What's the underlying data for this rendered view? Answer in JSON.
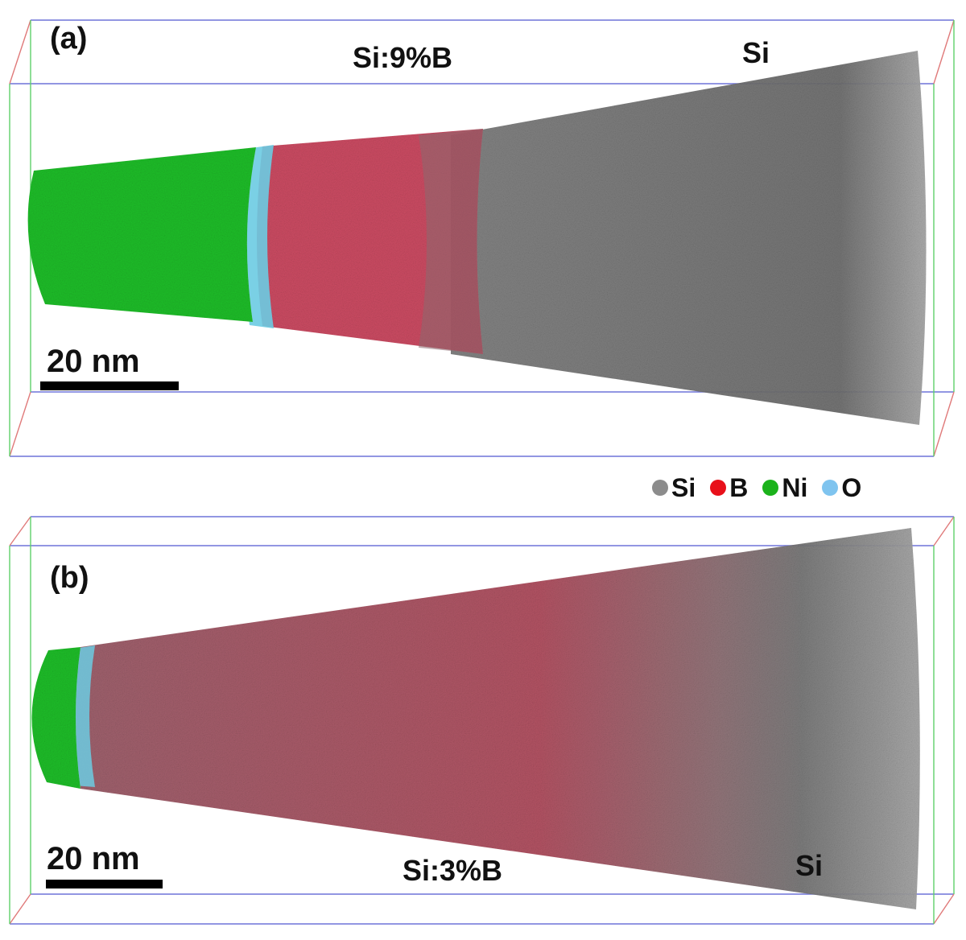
{
  "panel_a": {
    "label": "(a)",
    "region_doped": "Si:9%B",
    "region_undoped": "Si",
    "scale_bar": "20 nm"
  },
  "panel_b": {
    "label": "(b)",
    "region_doped": "Si:3%B",
    "region_undoped": "Si",
    "scale_bar": "20 nm"
  },
  "legend": [
    {
      "label": "Si",
      "color": "#8c8c8c"
    },
    {
      "label": "B",
      "color": "#e8101a"
    },
    {
      "label": "Ni",
      "color": "#1bb21b"
    },
    {
      "label": "O",
      "color": "#7fc4ef"
    }
  ],
  "colors": {
    "si": "#7d7d7d",
    "b": "#e2213c",
    "ni": "#1fbf2a",
    "o": "#66c9e6",
    "box_blue": "#6f74d8",
    "box_green": "#5fcf6a",
    "box_red": "#e07a7a"
  }
}
